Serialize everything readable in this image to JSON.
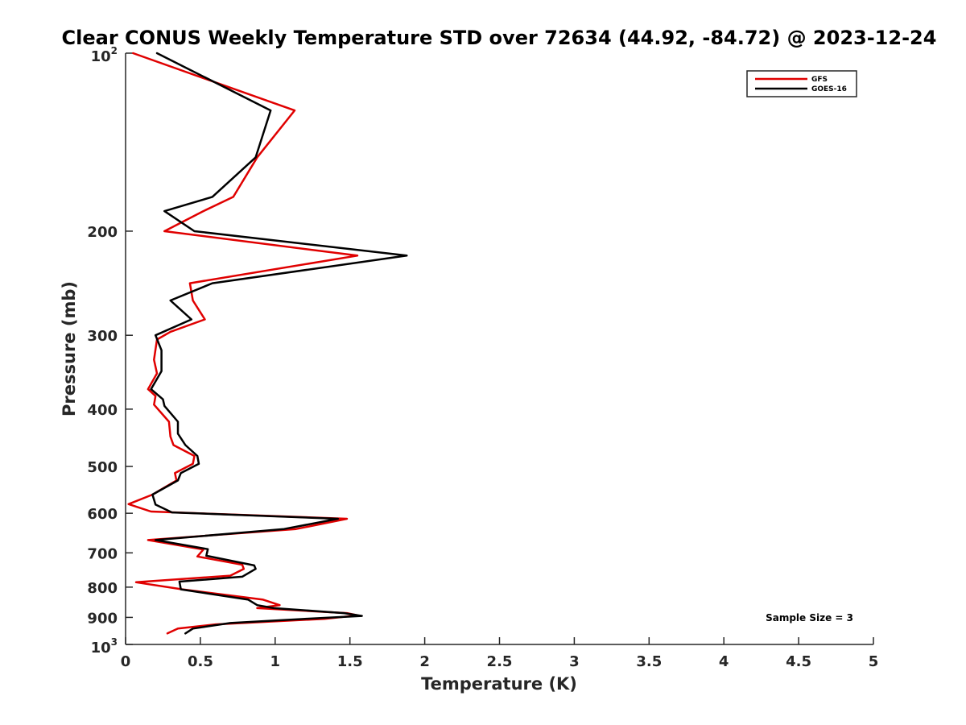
{
  "chart_data": {
    "type": "line",
    "title": "Clear CONUS Weekly Temperature STD over 72634 (44.92, -84.72) @ 2023-12-24",
    "xlabel": "Temperature (K)",
    "ylabel": "Pressure (mb)",
    "xlim": [
      0,
      5
    ],
    "ylim": [
      100,
      1000
    ],
    "yscale": "log",
    "y_reversed": true,
    "x_ticks": [
      "0",
      "0.5",
      "1",
      "1.5",
      "2",
      "2.5",
      "3",
      "3.5",
      "4",
      "4.5",
      "5"
    ],
    "y_ticks": [
      {
        "value": 100,
        "label": "10",
        "exp": "2"
      },
      {
        "value": 200,
        "label": "200"
      },
      {
        "value": 300,
        "label": "300"
      },
      {
        "value": 400,
        "label": "400"
      },
      {
        "value": 500,
        "label": "500"
      },
      {
        "value": 600,
        "label": "600"
      },
      {
        "value": 700,
        "label": "700"
      },
      {
        "value": 800,
        "label": "800"
      },
      {
        "value": 900,
        "label": "900"
      },
      {
        "value": 1000,
        "label": "10",
        "exp": "3"
      }
    ],
    "legend_position": "top-right",
    "annotation": "Sample Size = 3",
    "series": [
      {
        "name": "GFS",
        "color": "#e00000",
        "points": [
          [
            0.05,
            100
          ],
          [
            1.13,
            125
          ],
          [
            0.88,
            150
          ],
          [
            0.72,
            175
          ],
          [
            0.52,
            185
          ],
          [
            0.26,
            200
          ],
          [
            1.55,
            220
          ],
          [
            0.43,
            245
          ],
          [
            0.45,
            262
          ],
          [
            0.53,
            282
          ],
          [
            0.3,
            296
          ],
          [
            0.21,
            305
          ],
          [
            0.19,
            330
          ],
          [
            0.21,
            348
          ],
          [
            0.15,
            370
          ],
          [
            0.2,
            380
          ],
          [
            0.19,
            393
          ],
          [
            0.29,
            420
          ],
          [
            0.3,
            445
          ],
          [
            0.32,
            460
          ],
          [
            0.46,
            480
          ],
          [
            0.45,
            495
          ],
          [
            0.33,
            513
          ],
          [
            0.34,
            528
          ],
          [
            0.18,
            558
          ],
          [
            0.02,
            579
          ],
          [
            0.17,
            596
          ],
          [
            1.48,
            613
          ],
          [
            1.14,
            638
          ],
          [
            0.15,
            666
          ],
          [
            0.52,
            691
          ],
          [
            0.48,
            710
          ],
          [
            0.78,
            733
          ],
          [
            0.79,
            745
          ],
          [
            0.7,
            765
          ],
          [
            0.07,
            785
          ],
          [
            0.38,
            807
          ],
          [
            0.92,
            840
          ],
          [
            1.03,
            858
          ],
          [
            0.88,
            868
          ],
          [
            1.48,
            885
          ],
          [
            1.55,
            893
          ],
          [
            1.33,
            905
          ],
          [
            0.6,
            925
          ],
          [
            0.35,
            940
          ],
          [
            0.28,
            958
          ]
        ]
      },
      {
        "name": "GOES-16",
        "color": "#000000",
        "points": [
          [
            0.21,
            100
          ],
          [
            0.97,
            125
          ],
          [
            0.87,
            150
          ],
          [
            0.58,
            175
          ],
          [
            0.26,
            185
          ],
          [
            0.46,
            200
          ],
          [
            1.88,
            220
          ],
          [
            0.58,
            245
          ],
          [
            0.3,
            262
          ],
          [
            0.44,
            282
          ],
          [
            0.2,
            300
          ],
          [
            0.24,
            318
          ],
          [
            0.24,
            345
          ],
          [
            0.17,
            370
          ],
          [
            0.25,
            385
          ],
          [
            0.26,
            395
          ],
          [
            0.35,
            420
          ],
          [
            0.35,
            440
          ],
          [
            0.4,
            460
          ],
          [
            0.48,
            480
          ],
          [
            0.49,
            495
          ],
          [
            0.37,
            513
          ],
          [
            0.35,
            528
          ],
          [
            0.18,
            558
          ],
          [
            0.2,
            580
          ],
          [
            0.31,
            598
          ],
          [
            1.42,
            613
          ],
          [
            1.06,
            638
          ],
          [
            0.2,
            666
          ],
          [
            0.55,
            690
          ],
          [
            0.54,
            708
          ],
          [
            0.86,
            735
          ],
          [
            0.87,
            745
          ],
          [
            0.78,
            768
          ],
          [
            0.36,
            783
          ],
          [
            0.37,
            807
          ],
          [
            0.82,
            840
          ],
          [
            0.88,
            858
          ],
          [
            0.99,
            868
          ],
          [
            1.46,
            885
          ],
          [
            1.58,
            895
          ],
          [
            1.2,
            905
          ],
          [
            0.7,
            920
          ],
          [
            0.45,
            940
          ],
          [
            0.4,
            958
          ]
        ]
      }
    ]
  }
}
